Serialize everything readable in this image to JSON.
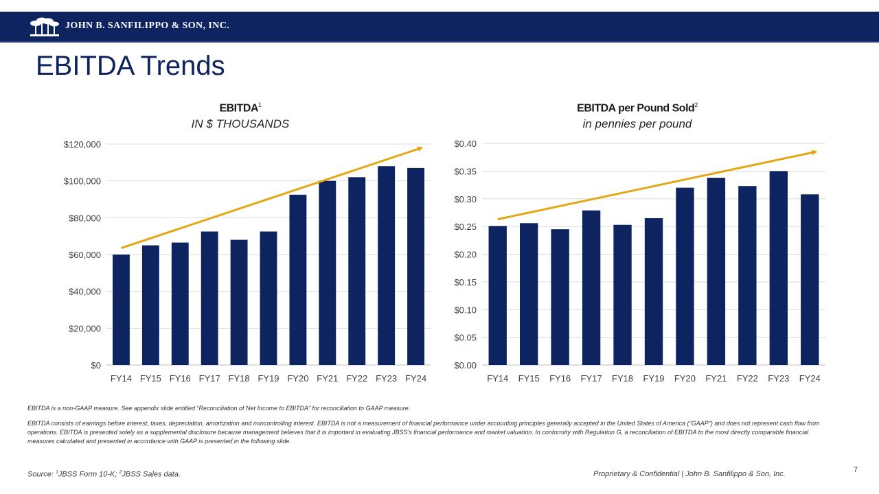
{
  "header": {
    "company_name": "JOHN B. SANFILIPPO & SON, INC.",
    "logo_icon": "palm-trees-logo"
  },
  "page_title": "EBITDA Trends",
  "colors": {
    "header_bg": "#0d2460",
    "bar": "#0d2460",
    "trend": "#e2a712",
    "grid": "#d9d9d9"
  },
  "charts": {
    "left": {
      "title": "EBITDA",
      "title_sup": "1",
      "subtitle": "IN $ THOUSANDS"
    },
    "right": {
      "title": "EBITDA per Pound Sold",
      "title_sup": "2",
      "subtitle": "in pennies per pound"
    }
  },
  "chart_data": [
    {
      "type": "bar",
      "title": "EBITDA",
      "subtitle": "IN $ THOUSANDS",
      "categories": [
        "FY14",
        "FY15",
        "FY16",
        "FY17",
        "FY18",
        "FY19",
        "FY20",
        "FY21",
        "FY22",
        "FY23",
        "FY24"
      ],
      "values": [
        60000,
        65000,
        66500,
        72500,
        68000,
        72500,
        92500,
        100000,
        102000,
        108000,
        107000
      ],
      "ylim": [
        0,
        120000
      ],
      "yticks": [
        0,
        20000,
        40000,
        60000,
        80000,
        100000,
        120000
      ],
      "ytick_labels": [
        "$0",
        "$20,000",
        "$40,000",
        "$60,000",
        "$80,000",
        "$100,000",
        "$120,000"
      ],
      "trendline": {
        "start_value": 63500,
        "end_value": 118000,
        "arrow": true
      },
      "grid": true
    },
    {
      "type": "bar",
      "title": "EBITDA per Pound Sold",
      "subtitle": "in pennies per pound",
      "categories": [
        "FY14",
        "FY15",
        "FY16",
        "FY17",
        "FY18",
        "FY19",
        "FY20",
        "FY21",
        "FY22",
        "FY23",
        "FY24"
      ],
      "values": [
        0.251,
        0.256,
        0.245,
        0.279,
        0.253,
        0.265,
        0.32,
        0.338,
        0.323,
        0.35,
        0.308
      ],
      "ylim": [
        0,
        0.4
      ],
      "yticks": [
        0,
        0.05,
        0.1,
        0.15,
        0.2,
        0.25,
        0.3,
        0.35,
        0.4
      ],
      "ytick_labels": [
        "$0.00",
        "$0.05",
        "$0.10",
        "$0.15",
        "$0.20",
        "$0.25",
        "$0.30",
        "$0.35",
        "$0.40"
      ],
      "trendline": {
        "start_value": 0.263,
        "end_value": 0.385,
        "arrow": true
      },
      "grid": true
    }
  ],
  "notes": {
    "line1": "EBITDA is a non-GAAP measure.  See appendix slide entitled “Reconciliation of Net Income to EBITDA” for reconciliation to GAAP measure.",
    "line2": "EBITDA consists of earnings before interest, taxes, depreciation, amortization and noncontrolling interest. EBITDA is not a measurement of financial performance under accounting principles generally accepted in the United States of America (\"GAAP\") and does not represent cash flow from operations. EBITDA is presented solely as a supplemental disclosure because management believes that it is important in evaluating JBSS’s financial performance and market valuation.  In conformity with Regulation G, a reconciliation of EBITDA to the most directly comparable financial measures calculated and presented in accordance with GAAP is presented in the following slide."
  },
  "footer": {
    "source_prefix": "Source: ",
    "source_sup1": "1",
    "source_mid": "JBSS Form 10-K; ",
    "source_sup2": "2",
    "source_end": "JBSS Sales data.",
    "confidential": "Proprietary & Confidential | John B. Sanfilippo & Son, Inc.",
    "page_number": "7"
  }
}
